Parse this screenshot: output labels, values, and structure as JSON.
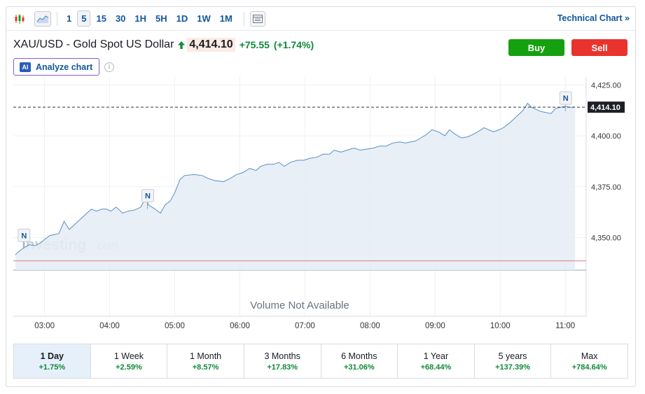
{
  "toolbar": {
    "chart_type_icons": [
      "candlestick-icon",
      "area-chart-icon"
    ],
    "timeframes": [
      "1",
      "5",
      "15",
      "30",
      "1H",
      "5H",
      "1D",
      "1W",
      "1M"
    ],
    "active_timeframe": "5",
    "table_icon": "table-icon",
    "technical_link": "Technical Chart »"
  },
  "header": {
    "symbol": "XAU/USD - Gold Spot US Dollar",
    "price": "4,414.10",
    "change": "+75.55",
    "change_pct": "(+1.74%)",
    "buy_label": "Buy",
    "sell_label": "Sell",
    "analyze_label": "Analyze chart",
    "ai_badge": "AI",
    "info_glyph": "i"
  },
  "chart": {
    "watermark_main": "Investing",
    "watermark_suffix": ".com",
    "volume_note": "Volume Not Available",
    "last_price_label": "4,414.10",
    "news_marker_label": "N",
    "colors": {
      "line": "#5a8fc7",
      "area": "#e4ecf5",
      "baseline": "#e87878",
      "grid": "#eef0f3",
      "last_price_bg": "#1d2127"
    }
  },
  "chart_data": {
    "type": "area",
    "title": "XAU/USD - Gold Spot US Dollar",
    "x_ticks": [
      "03:00",
      "04:00",
      "05:00",
      "06:00",
      "07:00",
      "08:00",
      "09:00",
      "10:00",
      "11:00"
    ],
    "y_ticks": [
      "4,425.00",
      "4,400.00",
      "4,375.00",
      "4,350.00"
    ],
    "ylim": [
      4334,
      4425.5
    ],
    "xlim": [
      2.52,
      11.32
    ],
    "previous_close": 4338.55,
    "last_price": 4414.1,
    "news_markers": [
      {
        "x": 2.68,
        "y": 4348
      },
      {
        "x": 4.58,
        "y": 4367.5
      },
      {
        "x": 11.0,
        "y": 4415.5
      }
    ],
    "series": [
      {
        "name": "XAU/USD",
        "points": [
          [
            2.55,
            4341.5
          ],
          [
            2.6,
            4343
          ],
          [
            2.68,
            4345
          ],
          [
            2.77,
            4346.5
          ],
          [
            2.85,
            4346
          ],
          [
            2.92,
            4347
          ],
          [
            3.0,
            4349
          ],
          [
            3.08,
            4351
          ],
          [
            3.15,
            4351.5
          ],
          [
            3.22,
            4352
          ],
          [
            3.3,
            4358
          ],
          [
            3.38,
            4354
          ],
          [
            3.45,
            4356
          ],
          [
            3.55,
            4359
          ],
          [
            3.65,
            4362
          ],
          [
            3.72,
            4364
          ],
          [
            3.8,
            4363
          ],
          [
            3.88,
            4364
          ],
          [
            3.95,
            4364
          ],
          [
            4.02,
            4363
          ],
          [
            4.1,
            4365
          ],
          [
            4.2,
            4362
          ],
          [
            4.28,
            4363
          ],
          [
            4.38,
            4363.5
          ],
          [
            4.48,
            4365
          ],
          [
            4.55,
            4369.5
          ],
          [
            4.6,
            4366
          ],
          [
            4.7,
            4364
          ],
          [
            4.78,
            4362
          ],
          [
            4.85,
            4366
          ],
          [
            4.93,
            4368
          ],
          [
            5.0,
            4372
          ],
          [
            5.08,
            4378.5
          ],
          [
            5.15,
            4380.5
          ],
          [
            5.3,
            4381
          ],
          [
            5.42,
            4380.5
          ],
          [
            5.52,
            4379
          ],
          [
            5.62,
            4378
          ],
          [
            5.75,
            4377.5
          ],
          [
            5.85,
            4379
          ],
          [
            5.95,
            4381
          ],
          [
            6.05,
            4382
          ],
          [
            6.15,
            4384
          ],
          [
            6.25,
            4383
          ],
          [
            6.32,
            4385
          ],
          [
            6.42,
            4386
          ],
          [
            6.52,
            4386
          ],
          [
            6.6,
            4387
          ],
          [
            6.68,
            4385
          ],
          [
            6.78,
            4387
          ],
          [
            6.88,
            4388
          ],
          [
            6.98,
            4388
          ],
          [
            7.08,
            4389
          ],
          [
            7.18,
            4389.5
          ],
          [
            7.28,
            4391
          ],
          [
            7.38,
            4391
          ],
          [
            7.45,
            4393
          ],
          [
            7.55,
            4392
          ],
          [
            7.65,
            4393
          ],
          [
            7.75,
            4394
          ],
          [
            7.85,
            4393
          ],
          [
            7.95,
            4393.5
          ],
          [
            8.05,
            4394
          ],
          [
            8.15,
            4395
          ],
          [
            8.25,
            4395
          ],
          [
            8.35,
            4396.5
          ],
          [
            8.45,
            4397
          ],
          [
            8.55,
            4396.5
          ],
          [
            8.62,
            4397
          ],
          [
            8.7,
            4397.5
          ],
          [
            8.78,
            4399
          ],
          [
            8.86,
            4400.5
          ],
          [
            8.95,
            4403
          ],
          [
            9.05,
            4402
          ],
          [
            9.15,
            4400
          ],
          [
            9.22,
            4403
          ],
          [
            9.3,
            4401
          ],
          [
            9.4,
            4399
          ],
          [
            9.5,
            4399.5
          ],
          [
            9.6,
            4401
          ],
          [
            9.68,
            4402.5
          ],
          [
            9.75,
            4404
          ],
          [
            9.82,
            4403
          ],
          [
            9.9,
            4402
          ],
          [
            9.98,
            4403
          ],
          [
            10.05,
            4404
          ],
          [
            10.15,
            4406.5
          ],
          [
            10.25,
            4409.5
          ],
          [
            10.35,
            4412.5
          ],
          [
            10.42,
            4416
          ],
          [
            10.48,
            4414
          ],
          [
            10.55,
            4413
          ],
          [
            10.62,
            4412
          ],
          [
            10.7,
            4411.5
          ],
          [
            10.78,
            4411
          ],
          [
            10.85,
            4413.5
          ],
          [
            10.92,
            4414
          ],
          [
            11.0,
            4414.5
          ],
          [
            11.08,
            4414
          ],
          [
            11.15,
            4414.1
          ]
        ]
      }
    ],
    "grid": true
  },
  "periods": [
    {
      "label": "1 Day",
      "change": "+1.75%",
      "active": true
    },
    {
      "label": "1 Week",
      "change": "+2.59%",
      "active": false
    },
    {
      "label": "1 Month",
      "change": "+8.57%",
      "active": false
    },
    {
      "label": "3 Months",
      "change": "+17.83%",
      "active": false
    },
    {
      "label": "6 Months",
      "change": "+31.06%",
      "active": false
    },
    {
      "label": "1 Year",
      "change": "+68.44%",
      "active": false
    },
    {
      "label": "5 years",
      "change": "+137.39%",
      "active": false
    },
    {
      "label": "Max",
      "change": "+784.64%",
      "active": false
    }
  ]
}
